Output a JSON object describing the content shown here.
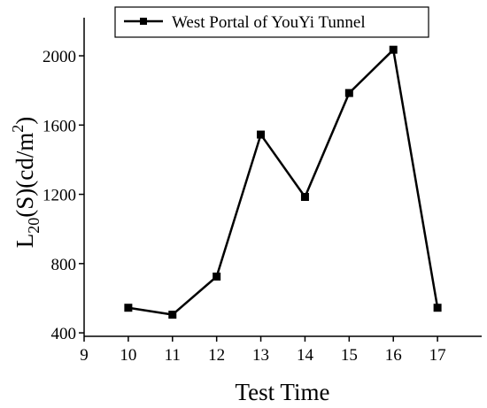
{
  "chart_data": {
    "type": "line",
    "title": "",
    "xlabel": "Test Time",
    "ylabel": {
      "main": "L",
      "subscript": "20",
      "middle": "(S)(cd/m",
      "superscript": "2",
      "end": ")"
    },
    "xlim": [
      9,
      18
    ],
    "ylim": [
      380,
      2220
    ],
    "x_ticks": [
      9,
      10,
      11,
      12,
      13,
      14,
      15,
      16,
      17
    ],
    "y_ticks": [
      400,
      800,
      1200,
      1600,
      2000
    ],
    "legend_position": "top",
    "grid": false,
    "series": [
      {
        "name": "West Portal of YouYi Tunnel",
        "marker": "square",
        "color": "#000000",
        "x": [
          10,
          11,
          12,
          13,
          14,
          15,
          16,
          17
        ],
        "y": [
          545,
          505,
          725,
          1545,
          1185,
          1785,
          2035,
          545
        ]
      }
    ]
  }
}
